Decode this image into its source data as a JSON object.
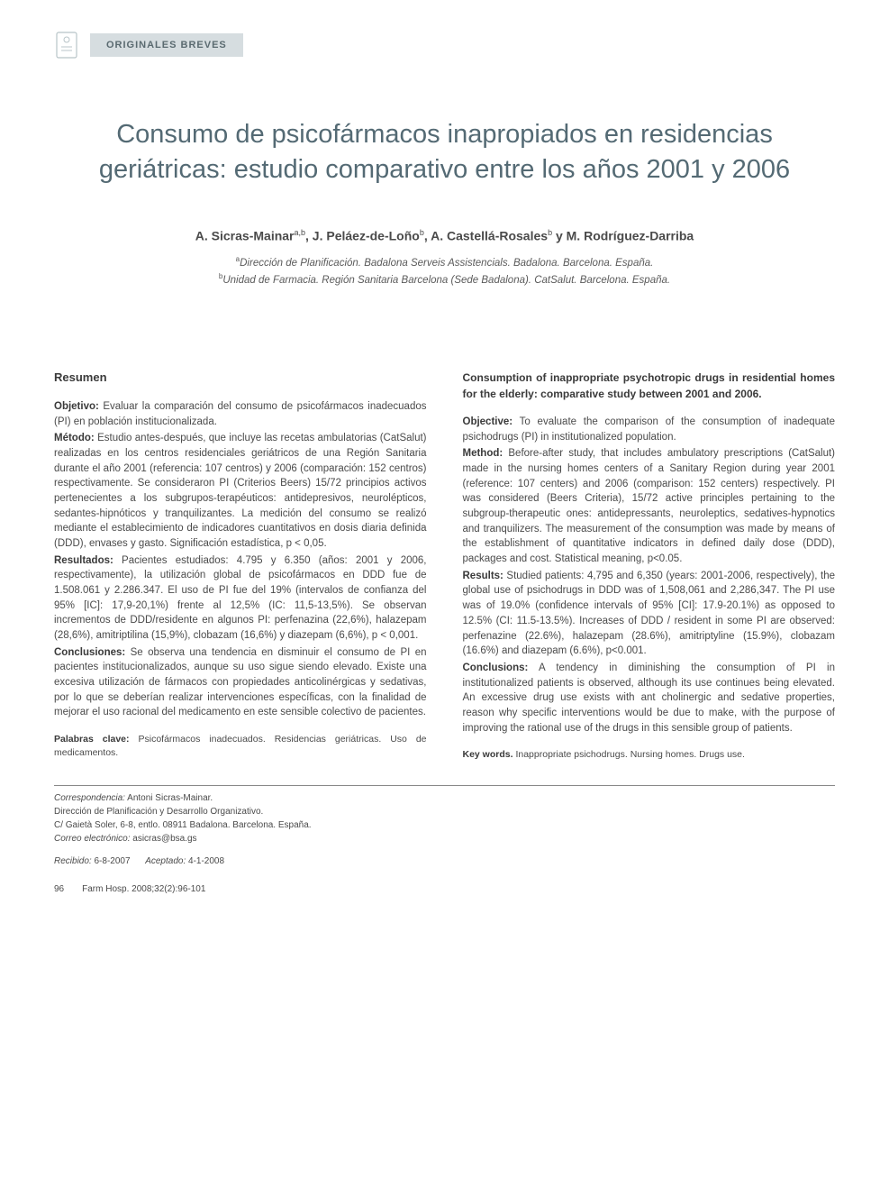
{
  "header": {
    "section_tag": "ORIGINALES BREVES"
  },
  "title": "Consumo de psicofármacos inapropiados en residencias geriátricas: estudio comparativo entre los años 2001 y 2006",
  "authors_html": "A. Sicras-Mainar<sup>a,b</sup>, J. Peláez-de-Loño<sup>b</sup>, A. Castellá-Rosales<sup>b</sup> y M. Rodríguez-Darriba",
  "affiliations": {
    "a": "Dirección de Planificación. Badalona Serveis Assistencials. Badalona. Barcelona. España.",
    "b": "Unidad de Farmacia. Región Sanitaria Barcelona (Sede Badalona). CatSalut. Barcelona. España."
  },
  "abstract_es": {
    "heading": "Resumen",
    "objetivo_label": "Objetivo:",
    "objetivo": "Evaluar la comparación del consumo de psicofármacos inadecuados (PI) en población institucionalizada.",
    "metodo_label": "Método:",
    "metodo": "Estudio antes-después, que incluye las recetas ambulatorias (CatSalut) realizadas en los centros residenciales geriátricos de una Región Sanitaria durante el año 2001 (referencia: 107 centros) y 2006 (comparación: 152 centros) respectivamente. Se consideraron PI (Criterios Beers) 15/72 principios activos pertenecientes a los subgrupos-terapéuticos: antidepresivos, neurolépticos, sedantes-hipnóticos y tranquilizantes. La medición del consumo se realizó mediante el establecimiento de indicadores cuantitativos en dosis diaria definida (DDD), envases y gasto. Significación estadística, p < 0,05.",
    "resultados_label": "Resultados:",
    "resultados": "Pacientes estudiados: 4.795 y 6.350 (años: 2001 y 2006, respectivamente), la utilización global de psicofármacos en DDD fue de 1.508.061 y 2.286.347. El uso de PI fue del 19% (intervalos de confianza del 95% [IC]: 17,9-20,1%) frente al 12,5% (IC: 11,5-13,5%). Se observan incrementos de DDD/residente en algunos PI: perfenazina (22,6%), halazepam (28,6%), amitriptilina (15,9%), clobazam (16,6%) y diazepam (6,6%), p < 0,001.",
    "conclusiones_label": "Conclusiones:",
    "conclusiones": "Se observa una tendencia en disminuir el consumo de PI en pacientes institucionalizados, aunque su uso sigue siendo elevado. Existe una excesiva utilización de fármacos con propiedades anticolinérgicas y sedativas, por lo que se deberían realizar intervenciones específicas, con la finalidad de mejorar el uso racional del medicamento en este sensible colectivo de pacientes.",
    "keywords_label": "Palabras clave:",
    "keywords": "Psicofármacos inadecuados. Residencias geriátricas. Uso de medicamentos."
  },
  "abstract_en": {
    "title": "Consumption of inappropriate psychotropic drugs in residential homes for the elderly: comparative study between 2001 and 2006.",
    "objective_label": "Objective:",
    "objective": "To evaluate the comparison of the consumption of inadequate psichodrugs (PI) in institutionalized population.",
    "method_label": "Method:",
    "method": "Before-after study, that includes ambulatory prescriptions (CatSalut) made in the nursing homes centers of a Sanitary Region during year 2001 (reference: 107 centers) and 2006 (comparison: 152 centers) respectively. PI was considered (Beers Criteria), 15/72 active principles pertaining to the subgroup-therapeutic ones: antidepressants, neuroleptics, sedatives-hypnotics and tranquilizers. The measurement of the consumption was made by means of the establishment of quantitative indicators in defined daily dose (DDD), packages and cost. Statistical meaning, p<0.05.",
    "results_label": "Results:",
    "results": "Studied patients: 4,795 and 6,350 (years: 2001-2006, respectively), the global use of psichodrugs in DDD was of 1,508,061 and 2,286,347. The PI use was of 19.0% (confidence intervals of 95% [CI]: 17.9-20.1%) as opposed to 12.5% (CI: 11.5-13.5%). Increases of DDD / resident in some PI are observed: perfenazine (22.6%), halazepam (28.6%), amitriptyline (15.9%), clobazam (16.6%) and diazepam (6.6%), p<0.001.",
    "conclusions_label": "Conclusions:",
    "conclusions": "A tendency in diminishing the consumption of PI in institutionalized patients is observed, although its use continues being elevated. An excessive drug use exists with ant cholinergic and sedative properties, reason why specific interventions would be due to make, with the purpose of improving the rational use of the drugs in this sensible group of patients.",
    "keywords_label": "Key words.",
    "keywords": "Inappropriate psichodrugs. Nursing homes. Drugs use."
  },
  "footer": {
    "corr_label": "Correspondencia:",
    "corr_name": "Antoni Sicras-Mainar.",
    "corr_line1": "Dirección de Planificación y Desarrollo Organizativo.",
    "corr_line2": "C/ Gaietà Soler, 6-8, entlo. 08911 Badalona. Barcelona. España.",
    "email_label": "Correo electrónico:",
    "email": "asicras@bsa.gs",
    "recibido_label": "Recibido:",
    "recibido": "6-8-2007",
    "aceptado_label": "Aceptado:",
    "aceptado": "4-1-2008"
  },
  "page_foot": {
    "page": "96",
    "citation": "Farm Hosp. 2008;32(2):96-101"
  },
  "colors": {
    "tag_bg": "#d6dde0",
    "tag_text": "#5a6a70",
    "title_text": "#546a74",
    "body_text": "#4a4a4a",
    "icon": "#b8c4c8"
  }
}
